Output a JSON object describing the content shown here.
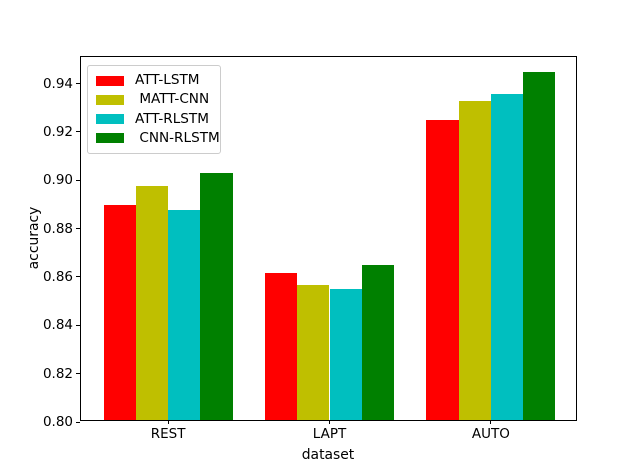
{
  "figure": {
    "background": "#ffffff"
  },
  "chart_data": {
    "type": "bar",
    "title": "",
    "xlabel": "dataset",
    "ylabel": "accuracy",
    "categories": [
      "REST",
      "LAPT",
      "AUTO"
    ],
    "series": [
      {
        "name": "ATT-LSTM",
        "legend_label": "ATT-LSTM",
        "color": "#ff0000",
        "values": [
          0.889,
          0.861,
          0.924
        ]
      },
      {
        "name": "MATT-CNN",
        "legend_label": " MATT-CNN",
        "color": "#bfbf00",
        "values": [
          0.897,
          0.856,
          0.932
        ]
      },
      {
        "name": "ATT-RLSTM",
        "legend_label": "ATT-RLSTM",
        "color": "#00bfbf",
        "values": [
          0.887,
          0.854,
          0.935
        ]
      },
      {
        "name": "CNN-RLSTM",
        "legend_label": " CNN-RLSTM",
        "color": "#008000",
        "values": [
          0.902,
          0.864,
          0.944
        ]
      }
    ],
    "ylim": [
      0.8,
      0.951
    ],
    "yticks": [
      0.8,
      0.82,
      0.84,
      0.86,
      0.88,
      0.9,
      0.92,
      0.94
    ],
    "xlim": [
      -0.54,
      2.54
    ],
    "bar_width": 0.2,
    "grid": false,
    "legend_position": "upper left",
    "tick_color": "#000000",
    "spine_color": "#000000"
  }
}
